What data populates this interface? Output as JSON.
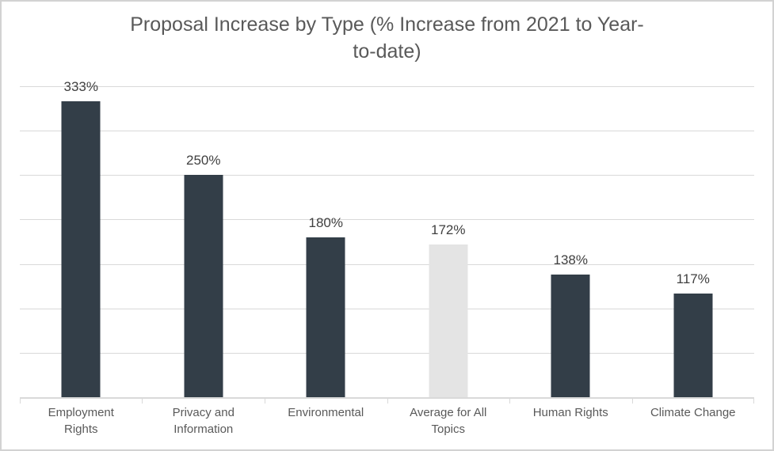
{
  "frame": {
    "background": "#ffffff",
    "border_color": "#d2d2d2"
  },
  "chart_data": {
    "type": "bar",
    "title": "Proposal Increase by Type (% Increase from 2021 to Year-to-date)",
    "title_lines": [
      "Proposal Increase by Type (% Increase from 2021 to Year-",
      "to-date)"
    ],
    "categories": [
      "Employment Rights",
      "Privacy and Information",
      "Environmental",
      "Average for All Topics",
      "Human Rights",
      "Climate Change"
    ],
    "categories_lines": [
      [
        "Employment",
        "Rights"
      ],
      [
        "Privacy and",
        "Information"
      ],
      [
        "Environmental"
      ],
      [
        "Average for All",
        "Topics"
      ],
      [
        "Human Rights"
      ],
      [
        "Climate Change"
      ]
    ],
    "values": [
      333,
      250,
      180,
      172,
      138,
      117
    ],
    "data_labels": [
      "333%",
      "250%",
      "180%",
      "172%",
      "138%",
      "117%"
    ],
    "bar_colors": [
      "#333e48",
      "#333e48",
      "#333e48",
      "#e4e4e4",
      "#333e48",
      "#333e48"
    ],
    "highlight_index": 3,
    "ylim": [
      0,
      350
    ],
    "gridline_interval": 50,
    "grid": true,
    "legend_position": "none",
    "xlabel": "",
    "ylabel": "",
    "colors": {
      "bar_default": "#333e48",
      "bar_highlight": "#e4e4e4",
      "gridline": "#d9d9d9",
      "axis_line": "#d9d9d9",
      "title_text": "#595959",
      "data_label_text": "#404040",
      "category_label_text": "#595959"
    }
  }
}
